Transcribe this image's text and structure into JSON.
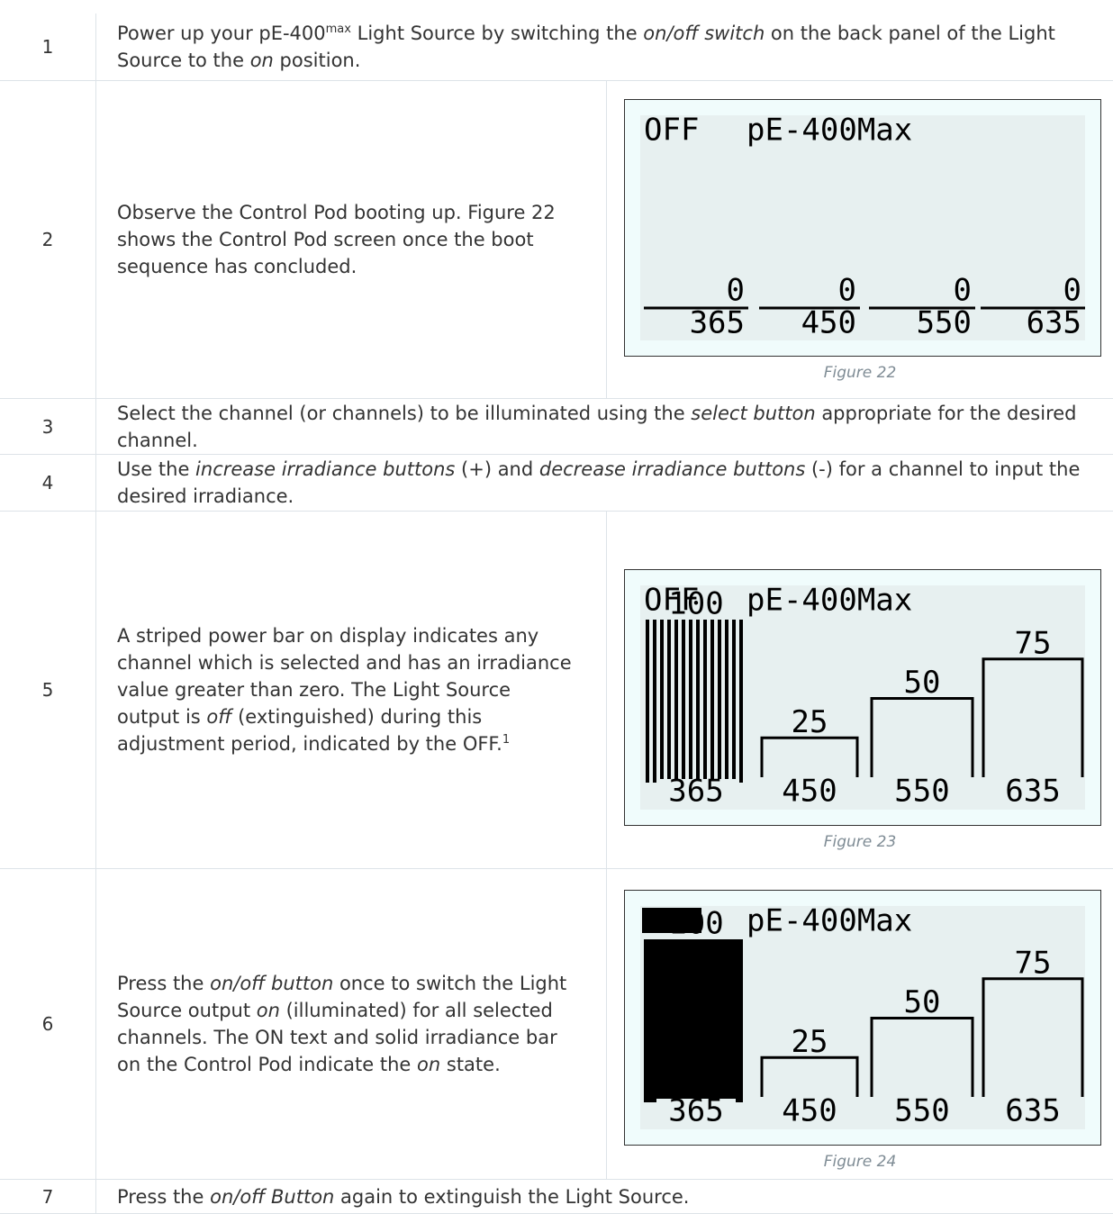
{
  "rows": [
    {
      "number": "1",
      "text": [
        "Power up your pE-400",
        {
          "text": "max",
          "style": "sup"
        },
        " Light Source by switching the ",
        {
          "text": "on/off switch",
          "style": "italic"
        },
        " on the back panel of the Light Source to the ",
        {
          "text": "on",
          "style": "italic"
        },
        " position."
      ]
    },
    {
      "number": "2",
      "text": [
        "Observe the Control Pod booting up. Figure 22 shows the Control Pod screen once the boot sequence has concluded."
      ],
      "figure": {
        "status": "OFF",
        "status_inverted": false,
        "model": "pE-400Max",
        "selected_bar_style": "striped",
        "channels": [
          {
            "value": 0,
            "wavelength": 365
          },
          {
            "value": 0,
            "wavelength": 450
          },
          {
            "value": 0,
            "wavelength": 550
          },
          {
            "value": 0,
            "wavelength": 635
          }
        ],
        "caption": "Figure 22"
      }
    },
    {
      "number": "3",
      "text": [
        "Select the channel (or channels) to be illuminated using the ",
        {
          "text": "select button",
          "style": "italic"
        },
        " appropriate for the desired channel."
      ]
    },
    {
      "number": "4",
      "text": [
        "Use the ",
        {
          "text": "increase irradiance buttons",
          "style": "italic"
        },
        " (+) and ",
        {
          "text": "decrease irradiance buttons",
          "style": "italic"
        },
        " (-) for a channel to input the desired irradiance."
      ]
    },
    {
      "number": "5",
      "text": [
        "A striped power bar on display indicates any channel which is selected and has an irradiance value greater than zero. The Light Source output is ",
        {
          "text": "off",
          "style": "italic"
        },
        " (extinguished) during this adjustment period, indicated by the OFF.",
        {
          "text": "1",
          "style": "sup"
        }
      ],
      "figure": {
        "status": "OFF",
        "status_inverted": false,
        "model": "pE-400Max",
        "selected_bar_style": "striped",
        "channels": [
          {
            "value": 100,
            "wavelength": 365,
            "selected": true
          },
          {
            "value": 25,
            "wavelength": 450
          },
          {
            "value": 50,
            "wavelength": 550
          },
          {
            "value": 75,
            "wavelength": 635
          }
        ],
        "caption": "Figure 23"
      }
    },
    {
      "number": "6",
      "text": [
        "Press the ",
        {
          "text": "on/off button",
          "style": "italic"
        },
        " once to switch the Light Source output ",
        {
          "text": "on",
          "style": "italic"
        },
        " (illuminated) for all selected channels. The ON text and solid irradiance bar on the Control Pod indicate the ",
        {
          "text": "on",
          "style": "italic"
        },
        " state."
      ],
      "figure": {
        "status": "ON",
        "status_inverted": true,
        "model": "pE-400Max",
        "selected_bar_style": "solid",
        "channels": [
          {
            "value": 100,
            "wavelength": 365,
            "selected": true
          },
          {
            "value": 25,
            "wavelength": 450
          },
          {
            "value": 50,
            "wavelength": 550
          },
          {
            "value": 75,
            "wavelength": 635
          }
        ],
        "caption": "Figure 24"
      }
    },
    {
      "number": "7",
      "text": [
        "Press the ",
        {
          "text": "on/off Button",
          "style": "italic"
        },
        " again to extinguish the Light Source."
      ]
    }
  ]
}
